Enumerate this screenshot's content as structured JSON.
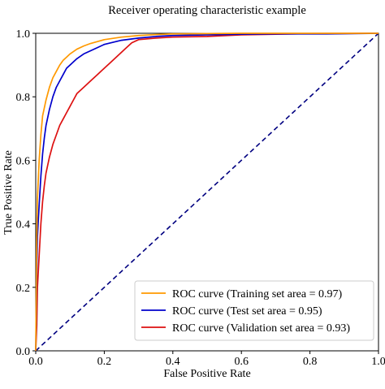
{
  "chart_data": {
    "type": "line",
    "title": "Receiver operating characteristic example",
    "xlabel": "False Positive Rate",
    "ylabel": "True Positive Rate",
    "xlim": [
      0.0,
      1.0
    ],
    "ylim": [
      0.0,
      1.0
    ],
    "xticks": [
      "0.0",
      "0.2",
      "0.4",
      "0.6",
      "0.8",
      "1.0"
    ],
    "yticks": [
      "0.0",
      "0.2",
      "0.4",
      "0.6",
      "0.8",
      "1.0"
    ],
    "grid": false,
    "legend_position": "lower-right",
    "series": [
      {
        "name": "ROC curve (Training set area = 0.97)",
        "color": "#ff9900",
        "style": "solid",
        "x": [
          0,
          0.003,
          0.005,
          0.01,
          0.015,
          0.02,
          0.03,
          0.04,
          0.05,
          0.06,
          0.07,
          0.08,
          0.09,
          0.1,
          0.12,
          0.14,
          0.16,
          0.18,
          0.2,
          0.25,
          0.3,
          0.35,
          0.4,
          0.5,
          0.6,
          0.7,
          0.8,
          1.0
        ],
        "y": [
          0,
          0.35,
          0.48,
          0.6,
          0.68,
          0.74,
          0.79,
          0.83,
          0.86,
          0.88,
          0.9,
          0.915,
          0.925,
          0.935,
          0.95,
          0.96,
          0.968,
          0.974,
          0.98,
          0.988,
          0.993,
          0.996,
          0.998,
          0.999,
          1.0,
          1.0,
          1.0,
          1.0
        ]
      },
      {
        "name": "ROC curve (Test set area = 0.95)",
        "color": "#0000cc",
        "style": "solid",
        "x": [
          0,
          0.003,
          0.005,
          0.01,
          0.015,
          0.02,
          0.025,
          0.03,
          0.04,
          0.05,
          0.06,
          0.07,
          0.08,
          0.09,
          0.1,
          0.12,
          0.14,
          0.16,
          0.18,
          0.2,
          0.25,
          0.3,
          0.35,
          0.4,
          0.5,
          0.6,
          0.7,
          0.85,
          1.0
        ],
        "y": [
          0,
          0.25,
          0.36,
          0.46,
          0.55,
          0.62,
          0.67,
          0.71,
          0.76,
          0.8,
          0.83,
          0.85,
          0.87,
          0.89,
          0.9,
          0.92,
          0.935,
          0.945,
          0.955,
          0.965,
          0.978,
          0.985,
          0.99,
          0.993,
          0.995,
          0.997,
          0.998,
          0.998,
          1.0
        ]
      },
      {
        "name": "ROC curve (Validation set area = 0.93)",
        "color": "#dd1111",
        "style": "solid",
        "x": [
          0,
          0.003,
          0.005,
          0.01,
          0.015,
          0.02,
          0.025,
          0.03,
          0.04,
          0.05,
          0.06,
          0.07,
          0.08,
          0.09,
          0.1,
          0.11,
          0.12,
          0.14,
          0.16,
          0.18,
          0.2,
          0.22,
          0.24,
          0.26,
          0.28,
          0.3,
          0.35,
          0.4,
          0.5,
          0.6,
          0.7,
          0.8,
          1.0
        ],
        "y": [
          0,
          0.08,
          0.2,
          0.3,
          0.4,
          0.47,
          0.52,
          0.56,
          0.61,
          0.65,
          0.68,
          0.71,
          0.73,
          0.75,
          0.77,
          0.79,
          0.81,
          0.83,
          0.85,
          0.87,
          0.89,
          0.91,
          0.93,
          0.95,
          0.97,
          0.98,
          0.985,
          0.988,
          0.99,
          0.995,
          0.997,
          0.999,
          1.0
        ]
      },
      {
        "name": "",
        "color": "#000080",
        "style": "dashed",
        "x": [
          0,
          1
        ],
        "y": [
          0,
          1
        ]
      }
    ]
  }
}
